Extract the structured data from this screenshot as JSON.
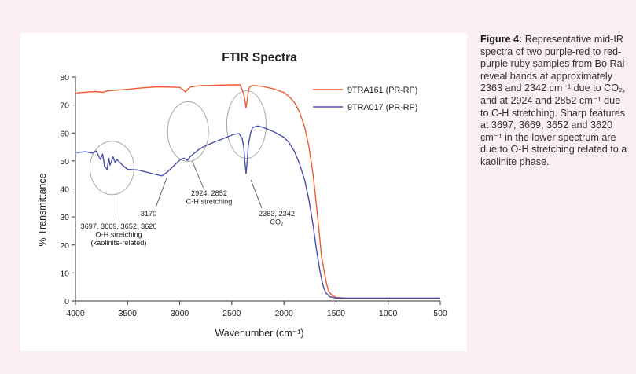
{
  "chart_data": {
    "type": "line",
    "title": "FTIR Spectra",
    "xlabel": "Wavenumber (cm⁻¹)",
    "ylabel": "% Transmittance",
    "xlim": [
      4000,
      500
    ],
    "ylim": [
      0,
      80
    ],
    "x_ticks": [
      4000,
      3500,
      3000,
      2500,
      2000,
      1500,
      1000,
      500
    ],
    "y_ticks": [
      0,
      10,
      20,
      30,
      40,
      50,
      60,
      70,
      80
    ],
    "grid": false,
    "legend_position": "top-right",
    "series": [
      {
        "name": "9TRA161 (PR-RP)",
        "color": "#ef5a33",
        "points": [
          [
            3990,
            74.3
          ],
          [
            3900,
            74.6
          ],
          [
            3800,
            74.8
          ],
          [
            3740,
            74.5
          ],
          [
            3700,
            75.0
          ],
          [
            3600,
            75.3
          ],
          [
            3500,
            75.6
          ],
          [
            3400,
            76.0
          ],
          [
            3300,
            76.3
          ],
          [
            3200,
            76.5
          ],
          [
            3100,
            76.4
          ],
          [
            3000,
            76.3
          ],
          [
            2960,
            75.2
          ],
          [
            2945,
            74.6
          ],
          [
            2924,
            75.6
          ],
          [
            2900,
            76.4
          ],
          [
            2852,
            76.7
          ],
          [
            2800,
            76.9
          ],
          [
            2700,
            77.0
          ],
          [
            2600,
            77.1
          ],
          [
            2500,
            77.2
          ],
          [
            2420,
            77.2
          ],
          [
            2390,
            74.5
          ],
          [
            2375,
            72.0
          ],
          [
            2363,
            69.0
          ],
          [
            2350,
            72.5
          ],
          [
            2342,
            74.5
          ],
          [
            2330,
            76.5
          ],
          [
            2300,
            77.0
          ],
          [
            2200,
            76.6
          ],
          [
            2100,
            75.8
          ],
          [
            2000,
            74.5
          ],
          [
            1950,
            73.0
          ],
          [
            1900,
            71.0
          ],
          [
            1850,
            67.5
          ],
          [
            1800,
            62.0
          ],
          [
            1760,
            55.0
          ],
          [
            1720,
            45.0
          ],
          [
            1690,
            35.0
          ],
          [
            1660,
            24.0
          ],
          [
            1640,
            16.0
          ],
          [
            1610,
            10.0
          ],
          [
            1590,
            6.0
          ],
          [
            1570,
            3.5
          ],
          [
            1540,
            2.0
          ],
          [
            1500,
            1.3
          ],
          [
            1400,
            1.0
          ],
          [
            1000,
            1.0
          ],
          [
            500,
            1.0
          ]
        ]
      },
      {
        "name": "9TRA017 (PR-RP)",
        "color": "#4a4fa8",
        "points": [
          [
            3990,
            53.0
          ],
          [
            3900,
            53.3
          ],
          [
            3840,
            52.8
          ],
          [
            3800,
            53.5
          ],
          [
            3760,
            50.5
          ],
          [
            3740,
            52.5
          ],
          [
            3720,
            48.0
          ],
          [
            3697,
            47.0
          ],
          [
            3680,
            51.0
          ],
          [
            3669,
            48.5
          ],
          [
            3652,
            50.0
          ],
          [
            3640,
            51.5
          ],
          [
            3620,
            49.5
          ],
          [
            3600,
            50.5
          ],
          [
            3550,
            48.5
          ],
          [
            3500,
            47.0
          ],
          [
            3400,
            46.8
          ],
          [
            3300,
            45.8
          ],
          [
            3200,
            44.9
          ],
          [
            3170,
            44.7
          ],
          [
            3120,
            46.0
          ],
          [
            3050,
            48.5
          ],
          [
            3000,
            50.3
          ],
          [
            2960,
            51.0
          ],
          [
            2924,
            50.2
          ],
          [
            2900,
            51.5
          ],
          [
            2852,
            53.0
          ],
          [
            2820,
            54.0
          ],
          [
            2750,
            55.5
          ],
          [
            2650,
            57.0
          ],
          [
            2550,
            58.5
          ],
          [
            2480,
            59.5
          ],
          [
            2430,
            59.8
          ],
          [
            2400,
            58.0
          ],
          [
            2385,
            55.0
          ],
          [
            2375,
            50.0
          ],
          [
            2363,
            45.5
          ],
          [
            2352,
            50.0
          ],
          [
            2342,
            55.5
          ],
          [
            2320,
            60.0
          ],
          [
            2300,
            62.0
          ],
          [
            2250,
            62.5
          ],
          [
            2200,
            62.0
          ],
          [
            2100,
            60.5
          ],
          [
            2000,
            58.5
          ],
          [
            1950,
            56.5
          ],
          [
            1900,
            53.5
          ],
          [
            1850,
            49.0
          ],
          [
            1800,
            43.0
          ],
          [
            1760,
            36.0
          ],
          [
            1720,
            27.0
          ],
          [
            1690,
            19.0
          ],
          [
            1660,
            12.0
          ],
          [
            1640,
            8.0
          ],
          [
            1620,
            5.0
          ],
          [
            1600,
            3.0
          ],
          [
            1560,
            1.5
          ],
          [
            1500,
            1.0
          ],
          [
            1000,
            1.0
          ],
          [
            500,
            1.0
          ]
        ]
      }
    ],
    "annotations": {
      "oh": {
        "lines": [
          "3697, 3669, 3652, 3620",
          "O-H stretching",
          "(kaolinite-related)"
        ]
      },
      "band3170": {
        "lines": [
          "3170"
        ]
      },
      "ch": {
        "lines": [
          "2924, 2852",
          "C-H stretching"
        ]
      },
      "co2": {
        "lines": [
          "2363, 2342",
          "CO₂"
        ]
      }
    }
  },
  "caption": {
    "label": "Figure 4:",
    "text": "Representative mid-IR spectra of two purple-red to red-purple ruby samples from Bo Rai reveal bands at approximately 2363 and 2342 cm⁻¹ due to CO₂, and at 2924 and 2852 cm⁻¹ due to C-H stretching. Sharp features at 3697, 3669, 3652 and 3620 cm⁻¹ in the lower spectrum are due to O-H stretching related to a kaolinite phase."
  }
}
